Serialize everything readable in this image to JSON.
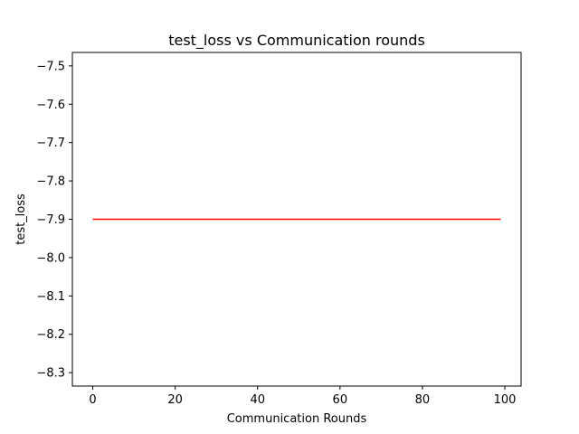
{
  "chart_data": {
    "type": "line",
    "title": "test_loss vs Communication rounds",
    "xlabel": "Communication Rounds",
    "ylabel": "test_loss",
    "xlim": [
      -4.95,
      103.95
    ],
    "ylim": [
      -8.335,
      -7.465
    ],
    "xticks": [
      0,
      20,
      40,
      60,
      80,
      100
    ],
    "yticks": [
      -8.3,
      -8.2,
      -8.1,
      -8.0,
      -7.9,
      -7.8,
      -7.7,
      -7.6,
      -7.5
    ],
    "xtick_labels": [
      "0",
      "20",
      "40",
      "60",
      "80",
      "100"
    ],
    "ytick_labels": [
      "−8.3",
      "−8.2",
      "−8.1",
      "−8.0",
      "−7.9",
      "−7.8",
      "−7.7",
      "−7.6",
      "−7.5"
    ],
    "grid": false,
    "legend": "none",
    "series": [
      {
        "color": "#ff0000",
        "x": [
          0,
          99
        ],
        "y": [
          -7.9,
          -7.9
        ]
      }
    ]
  }
}
